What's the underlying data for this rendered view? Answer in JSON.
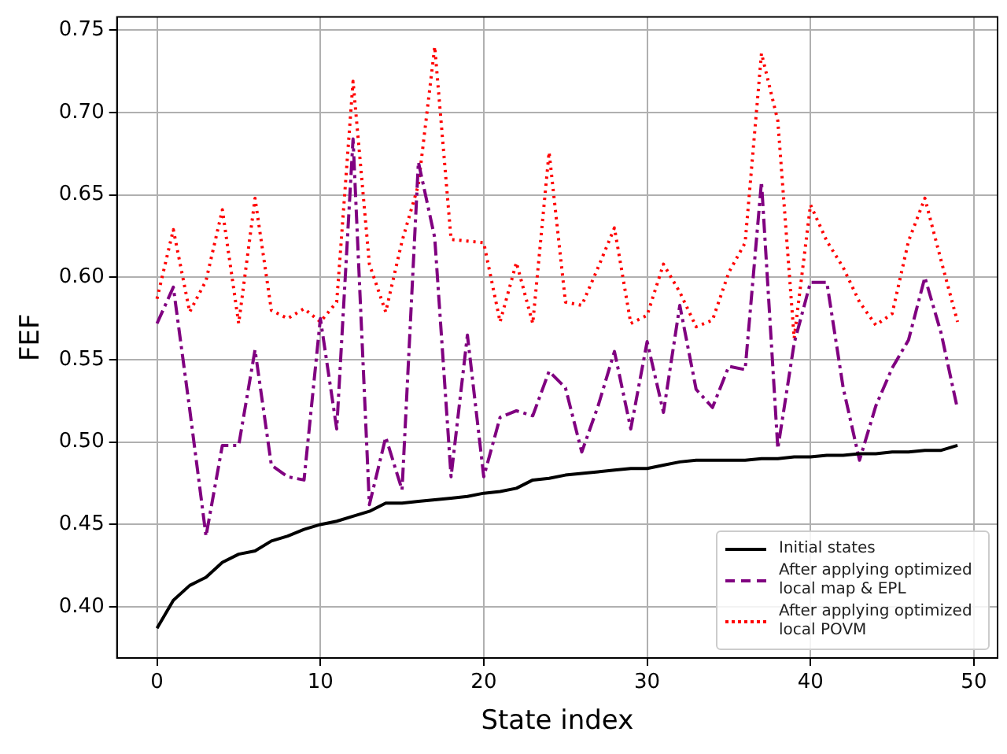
{
  "chart_data": {
    "type": "line",
    "xlabel": "State index",
    "ylabel": "FEF",
    "x": [
      0,
      1,
      2,
      3,
      4,
      5,
      6,
      7,
      8,
      9,
      10,
      11,
      12,
      13,
      14,
      15,
      16,
      17,
      18,
      19,
      20,
      21,
      22,
      23,
      24,
      25,
      26,
      27,
      28,
      29,
      30,
      31,
      32,
      33,
      34,
      35,
      36,
      37,
      38,
      39,
      40,
      41,
      42,
      43,
      44,
      45,
      46,
      47,
      48,
      49
    ],
    "series": [
      {
        "name": "Initial states",
        "color": "#000000",
        "line_style": "solid",
        "values": [
          0.387,
          0.404,
          0.413,
          0.418,
          0.427,
          0.432,
          0.434,
          0.44,
          0.443,
          0.447,
          0.45,
          0.452,
          0.455,
          0.458,
          0.463,
          0.463,
          0.464,
          0.465,
          0.466,
          0.467,
          0.469,
          0.47,
          0.472,
          0.477,
          0.478,
          0.48,
          0.481,
          0.482,
          0.483,
          0.484,
          0.484,
          0.486,
          0.488,
          0.489,
          0.489,
          0.489,
          0.489,
          0.49,
          0.49,
          0.491,
          0.491,
          0.492,
          0.492,
          0.493,
          0.493,
          0.494,
          0.494,
          0.495,
          0.495,
          0.498
        ]
      },
      {
        "name": "After applying optimized local map & EPL",
        "color": "#800080",
        "line_style": "dashdot",
        "values": [
          0.572,
          0.594,
          0.52,
          0.443,
          0.498,
          0.498,
          0.556,
          0.486,
          0.479,
          0.477,
          0.575,
          0.508,
          0.684,
          0.462,
          0.503,
          0.471,
          0.67,
          0.624,
          0.479,
          0.565,
          0.479,
          0.515,
          0.519,
          0.516,
          0.543,
          0.533,
          0.494,
          0.522,
          0.555,
          0.508,
          0.561,
          0.518,
          0.583,
          0.532,
          0.521,
          0.546,
          0.544,
          0.658,
          0.496,
          0.56,
          0.597,
          0.597,
          0.533,
          0.489,
          0.522,
          0.545,
          0.562,
          0.6,
          0.566,
          0.52
        ]
      },
      {
        "name": "After applying optimized local POVM",
        "color": "#ff0000",
        "line_style": "dotted",
        "values": [
          0.587,
          0.629,
          0.579,
          0.598,
          0.641,
          0.572,
          0.648,
          0.58,
          0.575,
          0.581,
          0.573,
          0.585,
          0.719,
          0.608,
          0.579,
          0.622,
          0.656,
          0.74,
          0.623,
          0.622,
          0.621,
          0.573,
          0.609,
          0.572,
          0.676,
          0.585,
          0.583,
          0.606,
          0.63,
          0.572,
          0.577,
          0.608,
          0.591,
          0.57,
          0.574,
          0.603,
          0.621,
          0.736,
          0.695,
          0.563,
          0.644,
          0.622,
          0.606,
          0.585,
          0.571,
          0.578,
          0.622,
          0.648,
          0.61,
          0.573
        ]
      }
    ],
    "xlim": [
      -2.45,
      51.45
    ],
    "xticks": [
      0,
      10,
      20,
      30,
      40,
      50
    ],
    "ylim": [
      0.369,
      0.758
    ],
    "yticks": [
      {
        "value": 0.4,
        "label": "0.40"
      },
      0.45,
      {
        "value": 0.5,
        "label": "0.50"
      },
      0.55,
      {
        "value": 0.6,
        "label": "0.60"
      },
      0.65,
      {
        "value": 0.7,
        "label": "0.70"
      },
      0.75
    ],
    "grid": true,
    "legend": "bottom right",
    "marker": "none"
  }
}
